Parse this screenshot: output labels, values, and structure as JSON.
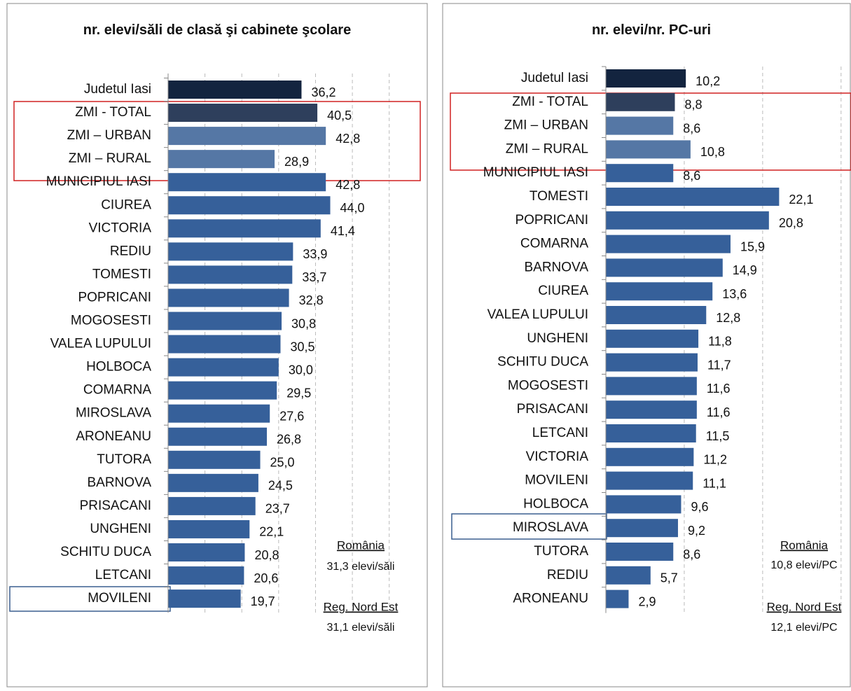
{
  "chart_data": [
    {
      "type": "barh",
      "title": "nr. elevi/săli de clasă şi cabinete şcolare",
      "categories": [
        "Judetul Iasi",
        "ZMI - TOTAL",
        "ZMI – URBAN",
        "ZMI – RURAL",
        "MUNICIPIUL IASI",
        "CIUREA",
        "VICTORIA",
        "REDIU",
        "TOMESTI",
        "POPRICANI",
        "MOGOSESTI",
        "VALEA LUPULUI",
        "HOLBOCA",
        "COMARNA",
        "MIROSLAVA",
        "ARONEANU",
        "TUTORA",
        "BARNOVA",
        "PRISACANI",
        "UNGHENI",
        "SCHITU DUCA",
        "LETCANI",
        "MOVILENI"
      ],
      "values": [
        36.2,
        40.5,
        42.8,
        28.9,
        42.8,
        44.0,
        41.4,
        33.9,
        33.7,
        32.8,
        30.8,
        30.5,
        30.0,
        29.5,
        27.6,
        26.8,
        25.0,
        24.5,
        23.7,
        22.1,
        20.8,
        20.6,
        19.7
      ],
      "value_labels": [
        "36,2",
        "40,5",
        "42,8",
        "28,9",
        "42,8",
        "44,0",
        "41,4",
        "33,9",
        "33,7",
        "32,8",
        "30,8",
        "30,5",
        "30,0",
        "29,5",
        "27,6",
        "26,8",
        "25,0",
        "24,5",
        "23,7",
        "22,1",
        "20,8",
        "20,6",
        "19,7"
      ],
      "colors": [
        "#13243f",
        "#2e3f5c",
        "#5577a5",
        "#5577a5",
        "#36609a",
        "#36609a",
        "#36609a",
        "#36609a",
        "#36609a",
        "#36609a",
        "#36609a",
        "#36609a",
        "#36609a",
        "#36609a",
        "#36609a",
        "#36609a",
        "#36609a",
        "#36609a",
        "#36609a",
        "#36609a",
        "#36609a",
        "#36609a",
        "#36609a"
      ],
      "xlim": [
        0,
        65
      ],
      "xticks": [
        0,
        10,
        20,
        30,
        40,
        50,
        60
      ],
      "grid": true,
      "annotations": [
        "România",
        "31,3 elevi/săli",
        "Reg. Nord Est",
        "31,1 elevi/săli"
      ]
    },
    {
      "type": "barh",
      "title": "nr. elevi/nr. PC-uri",
      "categories": [
        "Judetul Iasi",
        "ZMI - TOTAL",
        "ZMI – URBAN",
        "ZMI – RURAL",
        "MUNICIPIUL IASI",
        "TOMESTI",
        "POPRICANI",
        "COMARNA",
        "BARNOVA",
        "CIUREA",
        "VALEA LUPULUI",
        "UNGHENI",
        "SCHITU DUCA",
        "MOGOSESTI",
        "PRISACANI",
        "LETCANI",
        "VICTORIA",
        "MOVILENI",
        "HOLBOCA",
        "MIROSLAVA",
        "TUTORA",
        "REDIU",
        "ARONEANU"
      ],
      "values": [
        10.2,
        8.8,
        8.6,
        10.8,
        8.6,
        22.1,
        20.8,
        15.9,
        14.9,
        13.6,
        12.8,
        11.8,
        11.7,
        11.6,
        11.6,
        11.5,
        11.2,
        11.1,
        9.6,
        9.2,
        8.6,
        5.7,
        2.9
      ],
      "value_labels": [
        "10,2",
        "8,8",
        "8,6",
        "10,8",
        "8,6",
        "22,1",
        "20,8",
        "15,9",
        "14,9",
        "13,6",
        "12,8",
        "11,8",
        "11,7",
        "11,6",
        "11,6",
        "11,5",
        "11,2",
        "11,1",
        "9,6",
        "9,2",
        "8,6",
        "5,7",
        "2,9"
      ],
      "colors": [
        "#13243f",
        "#2e3f5c",
        "#5577a5",
        "#5577a5",
        "#36609a",
        "#36609a",
        "#36609a",
        "#36609a",
        "#36609a",
        "#36609a",
        "#36609a",
        "#36609a",
        "#36609a",
        "#36609a",
        "#36609a",
        "#36609a",
        "#36609a",
        "#36609a",
        "#36609a",
        "#36609a",
        "#36609a",
        "#36609a",
        "#36609a"
      ],
      "xlim": [
        0,
        31
      ],
      "xticks": [
        0,
        10,
        20,
        30
      ],
      "grid": true,
      "annotations": [
        "România",
        "10,8 elevi/PC",
        "Reg. Nord Est",
        "12,1 elevi/PC"
      ]
    }
  ]
}
